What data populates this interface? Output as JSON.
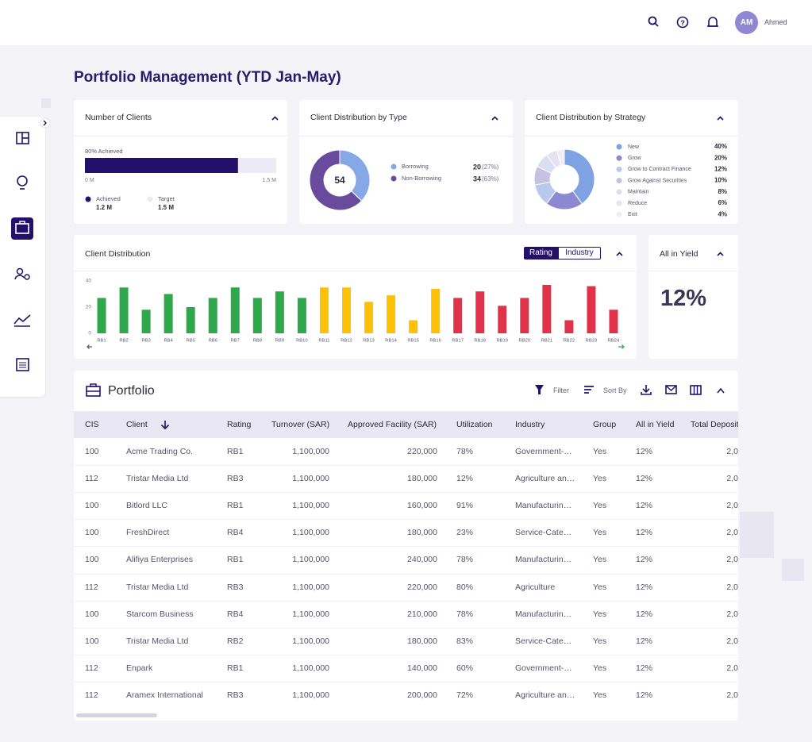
{
  "header": {
    "avatar": "AM",
    "user": "Ahmed"
  },
  "title": "Portfolio Management (YTD Jan-May)",
  "clients": {
    "title": "Number of Clients",
    "caption": "80% Achieved",
    "chart_data": {
      "type": "progress",
      "xlim": [
        0,
        1.5
      ],
      "xticks": [
        {
          "value": 0,
          "label": "0 M"
        },
        {
          "value": 1.5,
          "label": "1.5 M"
        }
      ],
      "series": [
        {
          "name": "Achieved",
          "color": "#22106b",
          "values": [
            1.2
          ],
          "value_labels": [
            "1.2 M"
          ]
        },
        {
          "name": "Target",
          "color": "#ebeaf5",
          "values": [
            1.5
          ],
          "value_labels": [
            "1.5 M"
          ]
        }
      ]
    }
  },
  "type_distribution": {
    "title": "Client Distribution by Type",
    "chart_data": {
      "type": "donut",
      "total": 54,
      "categories": [
        "Borrowing",
        "Non-Borrowing"
      ],
      "values": [
        20,
        34
      ],
      "shares": [
        "(27%)",
        "(63%)"
      ],
      "colors": [
        "#86a8e7",
        "#6a4a9c"
      ]
    }
  },
  "strategy_distribution": {
    "title": "Client Distribution by Strategy",
    "chart_data": {
      "type": "donut",
      "categories": [
        "New",
        "Grow",
        "Grow to Contract Finance",
        "Grow Against Securities",
        "Maintain",
        "Reduce",
        "Exit"
      ],
      "values": [
        40,
        20,
        12,
        10,
        8,
        6,
        4
      ],
      "value_labels": [
        "40%",
        "20%",
        "12%",
        "10%",
        "8%",
        "6%",
        "4%"
      ],
      "colors": [
        "#7fa2e3",
        "#8c88d2",
        "#b7caee",
        "#c5c1e2",
        "#dadef3",
        "#e4e2f3",
        "#efeef7"
      ]
    }
  },
  "client_distribution": {
    "title": "Client Distribution",
    "toggle": [
      "Rating",
      "Industry"
    ],
    "chart_data": {
      "type": "bar",
      "categories": [
        "RB1",
        "RB2",
        "RB3",
        "RB4",
        "RB5",
        "RB6",
        "RB7",
        "RB8",
        "RB9",
        "RB10",
        "RB11",
        "RB12",
        "RB13",
        "RB14",
        "RB15",
        "RB16",
        "RB17",
        "RB18",
        "RB19",
        "RB20",
        "RB21",
        "RB22",
        "RB23",
        "RB24"
      ],
      "values": [
        27,
        35,
        18,
        30,
        20,
        27,
        35,
        27,
        32,
        27,
        35,
        35,
        24,
        29,
        10,
        34,
        27,
        32,
        21,
        27,
        37,
        10,
        36,
        18
      ],
      "colors": [
        "#2ea84a",
        "#2ea84a",
        "#2ea84a",
        "#2ea84a",
        "#2ea84a",
        "#2ea84a",
        "#2ea84a",
        "#2ea84a",
        "#2ea84a",
        "#2ea84a",
        "#ffc107",
        "#ffc107",
        "#ffc107",
        "#ffc107",
        "#ffc107",
        "#ffc107",
        "#e0334a",
        "#e0334a",
        "#e0334a",
        "#e0334a",
        "#e0334a",
        "#e0334a",
        "#e0334a",
        "#e0334a"
      ],
      "ylim": [
        0,
        40
      ],
      "yticks": [
        0,
        20,
        40
      ],
      "grid": false
    }
  },
  "yield": {
    "title": "All in Yield",
    "value": "12%"
  },
  "portfolio": {
    "title": "Portfolio",
    "actions": [
      "Filter",
      "Sort By"
    ],
    "columns": [
      "CIS",
      "Client",
      "Rating",
      "Turnover (SAR)",
      "Approved Facility (SAR)",
      "Utilization",
      "Industry",
      "Group",
      "All in Yield",
      "Total Deposit"
    ],
    "rows": [
      [
        "100",
        "Acme Trading Co.",
        "RB1",
        "1,100,000",
        "220,000",
        "78%",
        "Government-…",
        "Yes",
        "12%",
        "2,0"
      ],
      [
        "112",
        "Tristar Media Ltd",
        "RB3",
        "1,100,000",
        "180,000",
        "12%",
        "Agriculture an…",
        "Yes",
        "12%",
        "2,0"
      ],
      [
        "100",
        "Bitlord LLC",
        "RB1",
        "1,100,000",
        "160,000",
        "91%",
        "Manufacturin…",
        "Yes",
        "12%",
        "2,0"
      ],
      [
        "100",
        "FreshDirect",
        "RB4",
        "1,100,000",
        "180,000",
        "23%",
        "Service-Cate…",
        "Yes",
        "12%",
        "2,0"
      ],
      [
        "100",
        "Alifiya Enterprises",
        "RB1",
        "1,100,000",
        "240,000",
        "78%",
        "Manufacturin…",
        "Yes",
        "12%",
        "2,0"
      ],
      [
        "112",
        "Tristar Media Ltd",
        "RB3",
        "1,100,000",
        "220,000",
        "80%",
        "Agriculture",
        "Yes",
        "12%",
        "2,0"
      ],
      [
        "100",
        "Starcom Business",
        "RB4",
        "1,100,000",
        "210,000",
        "78%",
        "Manufacturin…",
        "Yes",
        "12%",
        "2,0"
      ],
      [
        "100",
        "Tristar Media Ltd",
        "RB2",
        "1,100,000",
        "180,000",
        "83%",
        "Service-Cate…",
        "Yes",
        "12%",
        "2,0"
      ],
      [
        "112",
        "Enpark",
        "RB1",
        "1,100,000",
        "140,000",
        "60%",
        "Government-…",
        "Yes",
        "12%",
        "2,0"
      ],
      [
        "112",
        "Aramex International",
        "RB3",
        "1,100,000",
        "200,000",
        "72%",
        "Agriculture an…",
        "Yes",
        "12%",
        "2,0"
      ]
    ]
  }
}
